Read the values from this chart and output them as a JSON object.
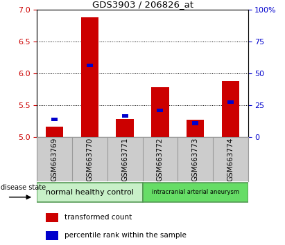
{
  "title": "GDS3903 / 206826_at",
  "samples": [
    "GSM663769",
    "GSM663770",
    "GSM663771",
    "GSM663772",
    "GSM663773",
    "GSM663774"
  ],
  "red_top": [
    5.17,
    6.88,
    5.28,
    5.78,
    5.27,
    5.88
  ],
  "red_bottom": [
    5.0,
    5.0,
    5.0,
    5.0,
    5.0,
    5.0
  ],
  "blue_values": [
    5.28,
    6.13,
    5.33,
    5.42,
    5.22,
    5.55
  ],
  "ylim_left": [
    5.0,
    7.0
  ],
  "ylim_right": [
    0,
    100
  ],
  "yticks_left": [
    5.0,
    5.5,
    6.0,
    6.5,
    7.0
  ],
  "yticks_right": [
    0,
    25,
    50,
    75,
    100
  ],
  "group1_label": "normal healthy control",
  "group2_label": "intracranial arterial aneurysm",
  "group1_color": "#c8f0c8",
  "group2_color": "#66dd66",
  "bar_color": "#cc0000",
  "blue_color": "#0000cc",
  "tick_label_color_left": "#cc0000",
  "tick_label_color_right": "#0000cc",
  "plot_bg": "#ffffff",
  "xticklabel_bg": "#cccccc",
  "disease_state_label": "disease state",
  "legend_red": "transformed count",
  "legend_blue": "percentile rank within the sample"
}
